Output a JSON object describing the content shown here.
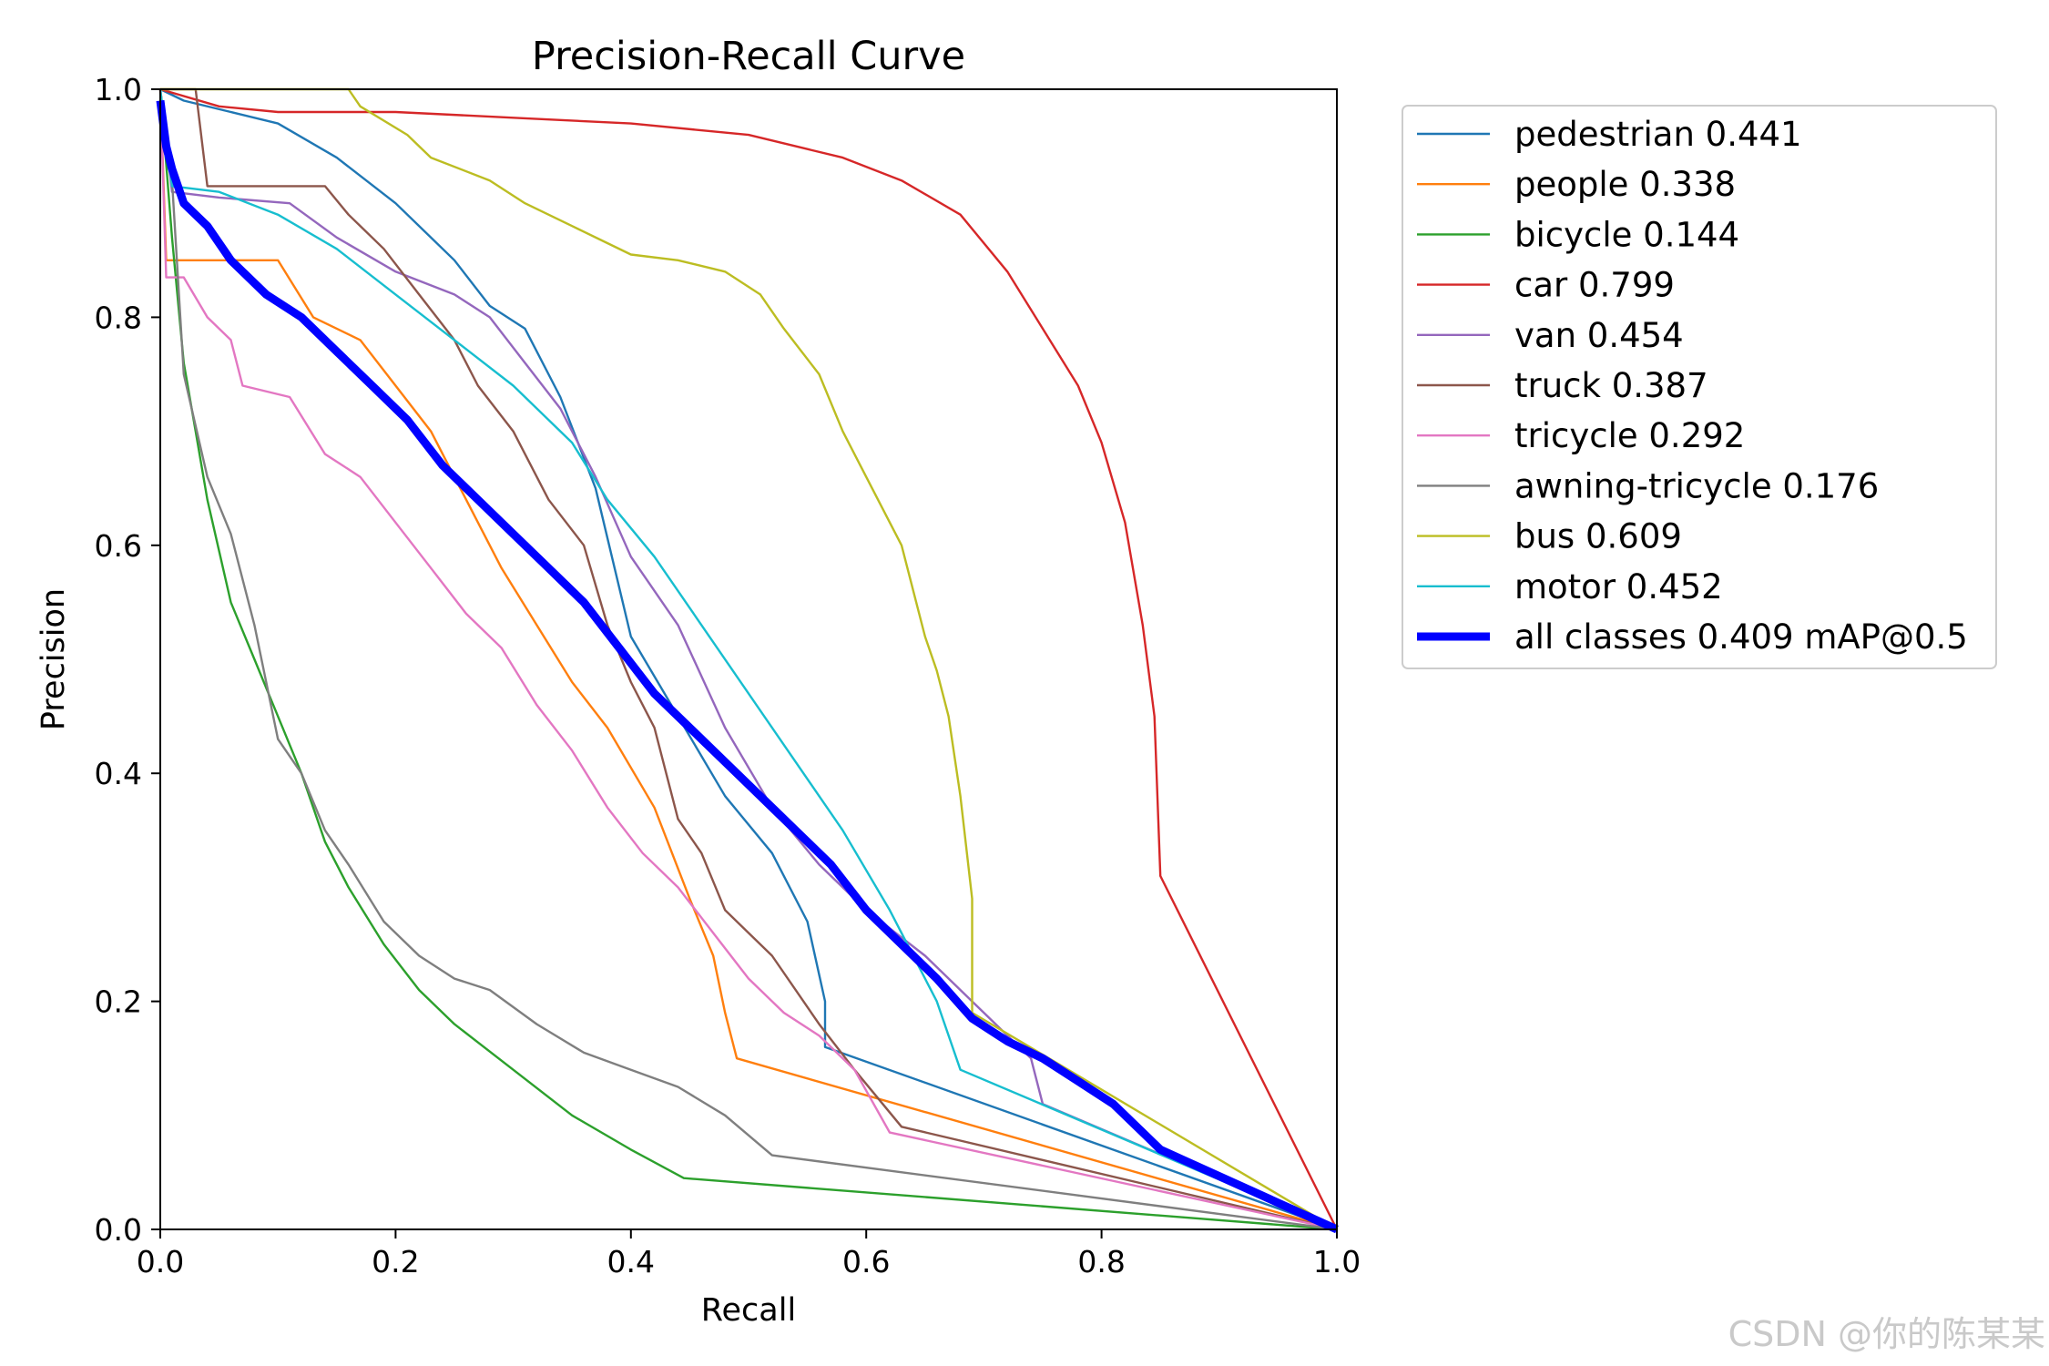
{
  "chart_data": {
    "type": "line",
    "title": "Precision-Recall Curve",
    "xlabel": "Recall",
    "ylabel": "Precision",
    "xlim": [
      0,
      1
    ],
    "ylim": [
      0,
      1
    ],
    "xticks": [
      "0.0",
      "0.2",
      "0.4",
      "0.6",
      "0.8",
      "1.0"
    ],
    "yticks": [
      "0.0",
      "0.2",
      "0.4",
      "0.6",
      "0.8",
      "1.0"
    ],
    "grid": false,
    "legend_position": "outside-right",
    "series": [
      {
        "name": "pedestrian",
        "ap": "0.441",
        "label": "pedestrian 0.441",
        "color": "#1f77b4",
        "thick": false,
        "x": [
          0,
          0.02,
          0.06,
          0.1,
          0.15,
          0.2,
          0.25,
          0.28,
          0.31,
          0.34,
          0.37,
          0.4,
          0.44,
          0.48,
          0.52,
          0.55,
          0.565,
          0.565,
          1.0
        ],
        "y": [
          1.0,
          0.99,
          0.98,
          0.97,
          0.94,
          0.9,
          0.85,
          0.81,
          0.79,
          0.73,
          0.65,
          0.52,
          0.45,
          0.38,
          0.33,
          0.27,
          0.2,
          0.16,
          0.0
        ]
      },
      {
        "name": "people",
        "ap": "0.338",
        "label": "people 0.338",
        "color": "#ff7f0e",
        "thick": false,
        "x": [
          0,
          0.005,
          0.01,
          0.1,
          0.13,
          0.17,
          0.2,
          0.23,
          0.26,
          0.29,
          0.32,
          0.35,
          0.38,
          0.42,
          0.45,
          0.47,
          0.48,
          0.49,
          1.0
        ],
        "y": [
          1.0,
          0.85,
          0.85,
          0.85,
          0.8,
          0.78,
          0.74,
          0.7,
          0.64,
          0.58,
          0.53,
          0.48,
          0.44,
          0.37,
          0.29,
          0.24,
          0.19,
          0.15,
          0.0
        ]
      },
      {
        "name": "bicycle",
        "ap": "0.144",
        "label": "bicycle 0.144",
        "color": "#2ca02c",
        "thick": false,
        "x": [
          0,
          0.01,
          0.02,
          0.03,
          0.04,
          0.06,
          0.08,
          0.1,
          0.12,
          0.14,
          0.16,
          0.19,
          0.22,
          0.25,
          0.3,
          0.35,
          0.4,
          0.445,
          1.0
        ],
        "y": [
          1.0,
          0.87,
          0.76,
          0.7,
          0.64,
          0.55,
          0.5,
          0.45,
          0.4,
          0.34,
          0.3,
          0.25,
          0.21,
          0.18,
          0.14,
          0.1,
          0.07,
          0.045,
          0.0
        ]
      },
      {
        "name": "car",
        "ap": "0.799",
        "label": "car 0.799",
        "color": "#d62728",
        "thick": false,
        "x": [
          0,
          0.05,
          0.1,
          0.2,
          0.3,
          0.4,
          0.5,
          0.58,
          0.63,
          0.68,
          0.72,
          0.75,
          0.78,
          0.8,
          0.82,
          0.835,
          0.845,
          0.85,
          1.0
        ],
        "y": [
          1.0,
          0.985,
          0.98,
          0.98,
          0.975,
          0.97,
          0.96,
          0.94,
          0.92,
          0.89,
          0.84,
          0.79,
          0.74,
          0.69,
          0.62,
          0.53,
          0.45,
          0.31,
          0.0
        ]
      },
      {
        "name": "van",
        "ap": "0.454",
        "label": "van 0.454",
        "color": "#9467bd",
        "thick": false,
        "x": [
          0,
          0.01,
          0.05,
          0.11,
          0.15,
          0.2,
          0.25,
          0.28,
          0.31,
          0.34,
          0.37,
          0.4,
          0.44,
          0.48,
          0.52,
          0.56,
          0.6,
          0.65,
          0.7,
          0.74,
          0.75,
          1.0
        ],
        "y": [
          1.0,
          0.91,
          0.905,
          0.9,
          0.87,
          0.84,
          0.82,
          0.8,
          0.76,
          0.72,
          0.66,
          0.59,
          0.53,
          0.44,
          0.37,
          0.32,
          0.28,
          0.24,
          0.19,
          0.15,
          0.11,
          0.0
        ]
      },
      {
        "name": "truck",
        "ap": "0.387",
        "label": "truck 0.387",
        "color": "#8c564b",
        "thick": false,
        "x": [
          0,
          0.03,
          0.04,
          0.14,
          0.16,
          0.19,
          0.22,
          0.25,
          0.27,
          0.3,
          0.33,
          0.36,
          0.38,
          0.4,
          0.42,
          0.44,
          0.46,
          0.48,
          0.52,
          0.56,
          0.59,
          0.63,
          1.0
        ],
        "y": [
          1.0,
          1.0,
          0.915,
          0.915,
          0.89,
          0.86,
          0.82,
          0.78,
          0.74,
          0.7,
          0.64,
          0.6,
          0.53,
          0.48,
          0.44,
          0.36,
          0.33,
          0.28,
          0.24,
          0.18,
          0.14,
          0.09,
          0.0
        ]
      },
      {
        "name": "tricycle",
        "ap": "0.292",
        "label": "tricycle 0.292",
        "color": "#e377c2",
        "thick": false,
        "x": [
          0,
          0.005,
          0.02,
          0.04,
          0.06,
          0.07,
          0.11,
          0.14,
          0.17,
          0.2,
          0.23,
          0.26,
          0.29,
          0.32,
          0.35,
          0.38,
          0.41,
          0.44,
          0.47,
          0.5,
          0.53,
          0.56,
          0.59,
          0.62,
          1.0
        ],
        "y": [
          1.0,
          0.835,
          0.835,
          0.8,
          0.78,
          0.74,
          0.73,
          0.68,
          0.66,
          0.62,
          0.58,
          0.54,
          0.51,
          0.46,
          0.42,
          0.37,
          0.33,
          0.3,
          0.26,
          0.22,
          0.19,
          0.17,
          0.14,
          0.085,
          0.0
        ]
      },
      {
        "name": "awning-tricycle",
        "ap": "0.176",
        "label": "awning-tricycle 0.176",
        "color": "#7f7f7f",
        "thick": false,
        "x": [
          0,
          0.01,
          0.02,
          0.04,
          0.06,
          0.08,
          0.09,
          0.1,
          0.12,
          0.14,
          0.16,
          0.19,
          0.22,
          0.25,
          0.28,
          0.32,
          0.36,
          0.4,
          0.44,
          0.48,
          0.52,
          1.0
        ],
        "y": [
          1.0,
          0.92,
          0.75,
          0.66,
          0.61,
          0.53,
          0.48,
          0.43,
          0.4,
          0.35,
          0.32,
          0.27,
          0.24,
          0.22,
          0.21,
          0.18,
          0.155,
          0.14,
          0.125,
          0.1,
          0.065,
          0.0
        ]
      },
      {
        "name": "bus",
        "ap": "0.609",
        "label": "bus 0.609",
        "color": "#bcbd22",
        "thick": false,
        "x": [
          0,
          0.16,
          0.17,
          0.21,
          0.23,
          0.28,
          0.31,
          0.35,
          0.38,
          0.4,
          0.44,
          0.48,
          0.51,
          0.53,
          0.56,
          0.58,
          0.6,
          0.63,
          0.64,
          0.65,
          0.66,
          0.67,
          0.68,
          0.69,
          0.69,
          1.0
        ],
        "y": [
          1.0,
          1.0,
          0.985,
          0.96,
          0.94,
          0.92,
          0.9,
          0.88,
          0.865,
          0.855,
          0.85,
          0.84,
          0.82,
          0.79,
          0.75,
          0.7,
          0.66,
          0.6,
          0.56,
          0.52,
          0.49,
          0.45,
          0.38,
          0.29,
          0.19,
          0.0
        ]
      },
      {
        "name": "motor",
        "ap": "0.452",
        "label": "motor 0.452",
        "color": "#17becf",
        "thick": false,
        "x": [
          0,
          0.01,
          0.05,
          0.1,
          0.15,
          0.2,
          0.25,
          0.3,
          0.35,
          0.38,
          0.42,
          0.46,
          0.5,
          0.54,
          0.58,
          0.62,
          0.66,
          0.68,
          1.0
        ],
        "y": [
          1.0,
          0.915,
          0.91,
          0.89,
          0.86,
          0.82,
          0.78,
          0.74,
          0.69,
          0.64,
          0.59,
          0.53,
          0.47,
          0.41,
          0.35,
          0.28,
          0.2,
          0.14,
          0.0
        ]
      },
      {
        "name": "all classes",
        "ap": "0.409",
        "label": "all classes 0.409 mAP@0.5",
        "color": "#0000ff",
        "thick": true,
        "x": [
          0,
          0.005,
          0.01,
          0.02,
          0.04,
          0.06,
          0.09,
          0.12,
          0.15,
          0.18,
          0.21,
          0.24,
          0.27,
          0.3,
          0.33,
          0.36,
          0.39,
          0.42,
          0.45,
          0.48,
          0.51,
          0.54,
          0.57,
          0.6,
          0.63,
          0.66,
          0.69,
          0.72,
          0.75,
          0.78,
          0.81,
          0.84,
          0.85,
          1.0
        ],
        "y": [
          0.99,
          0.95,
          0.93,
          0.9,
          0.88,
          0.85,
          0.82,
          0.8,
          0.77,
          0.74,
          0.71,
          0.67,
          0.64,
          0.61,
          0.58,
          0.55,
          0.51,
          0.47,
          0.44,
          0.41,
          0.38,
          0.35,
          0.32,
          0.28,
          0.25,
          0.22,
          0.185,
          0.165,
          0.15,
          0.13,
          0.11,
          0.08,
          0.07,
          0.0
        ]
      }
    ]
  },
  "watermark": "CSDN @你的陈某某"
}
